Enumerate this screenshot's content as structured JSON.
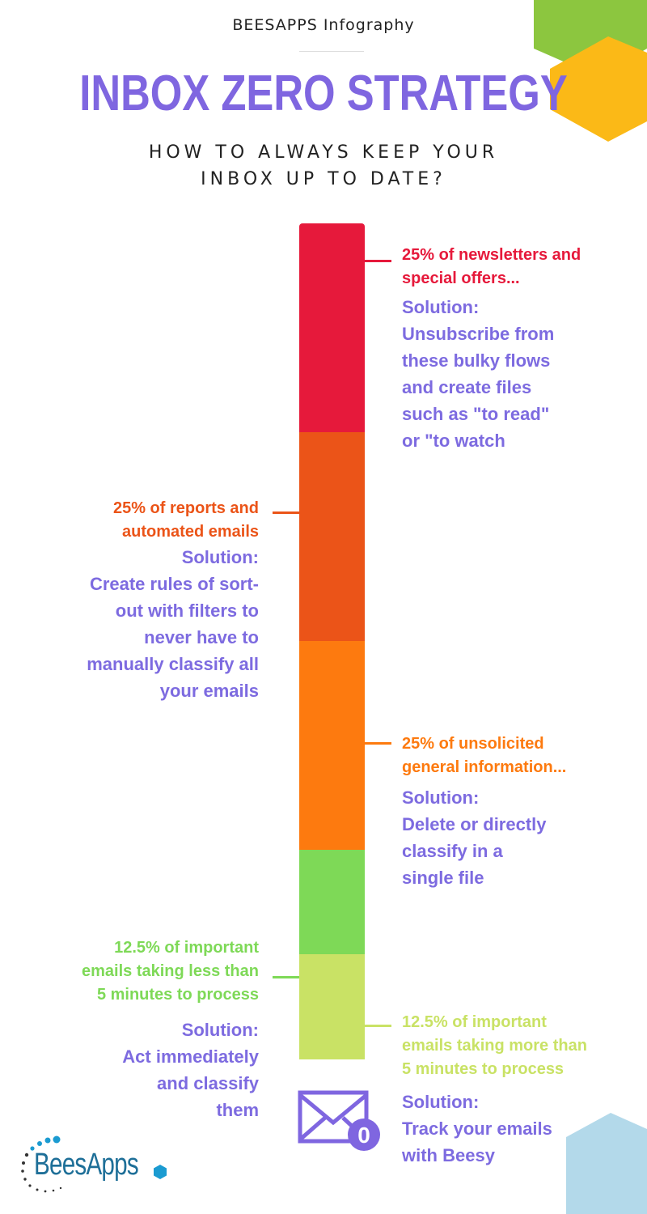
{
  "header": {
    "brand": "BEESAPPS Infography",
    "title": "INBOX ZERO STRATEGY",
    "subtitle": "HOW TO ALWAYS KEEP YOUR\nINBOX UP TO DATE?"
  },
  "colors": {
    "accent": "#7f66e0",
    "red": "#e6193b",
    "dark_orange": "#eb5418",
    "orange": "#fd7a0f",
    "green": "#7ed957",
    "light_green": "#c9e265",
    "hex_green": "#8cc63f",
    "hex_yellow": "#fbb917",
    "hex_blue": "#b3d9ea"
  },
  "segments": [
    {
      "share": 25,
      "color": "#e6193b",
      "label": "25% of newsletters and\nspecial offers...",
      "solution": "Solution:\nUnsubscribe from\nthese bulky flows\nand create files\nsuch as \"to read\"\nor \"to watch"
    },
    {
      "share": 25,
      "color": "#eb5418",
      "label": "25% of reports and\nautomated emails ",
      "solution": "Solution:\nCreate rules of sort-\nout with filters to\nnever have to\nmanually classify all\nyour emails"
    },
    {
      "share": 25,
      "color": "#fd7a0f",
      "label": "25% of unsolicited\ngeneral information...",
      "solution": "Solution:\nDelete or directly\nclassify in a\nsingle file"
    },
    {
      "share": 12.5,
      "color": "#7ed957",
      "label": "12.5% of important\nemails taking less than\n5 minutes to process",
      "solution": "Solution:\nAct immediately\nand classify\nthem"
    },
    {
      "share": 12.5,
      "color": "#c9e265",
      "label": "12.5% of important\nemails taking more than\n5 minutes to process",
      "solution": "Solution:\nTrack your emails\nwith Beesy"
    }
  ],
  "mail_icon": {
    "icon": "envelope-icon",
    "badge": "0"
  },
  "logo": {
    "text": "BeesApps"
  }
}
